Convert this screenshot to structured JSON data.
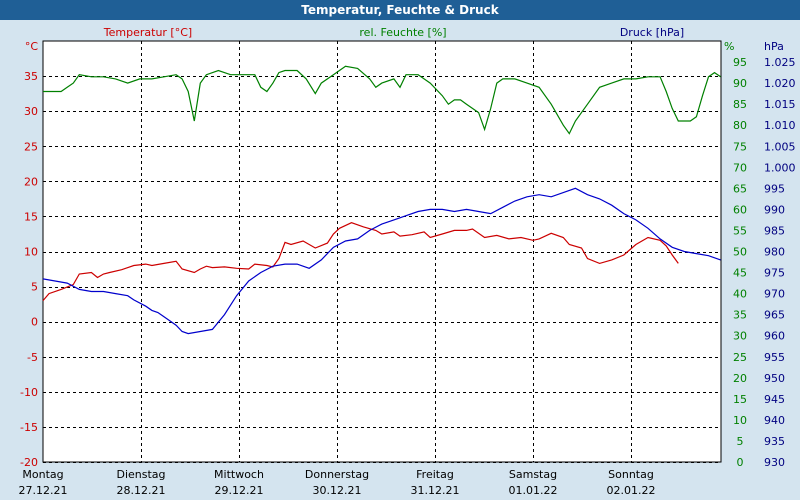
{
  "window": {
    "title": "Temperatur, Feuchte & Druck"
  },
  "colors": {
    "background": "#d4e4ef",
    "titlebar": "#1f5f96",
    "temperature": "#cc0000",
    "humidity": "#008000",
    "pressure": "#0000cc"
  },
  "chart_data": {
    "type": "line",
    "title": "Temperatur, Feuchte & Druck",
    "grid": true,
    "legend_placement": "top",
    "x_ticks": [
      {
        "day": "Montag",
        "date": "27.12.21"
      },
      {
        "day": "Dienstag",
        "date": "28.12.21"
      },
      {
        "day": "Mittwoch",
        "date": "29.12.21"
      },
      {
        "day": "Donnerstag",
        "date": "30.12.21"
      },
      {
        "day": "Freitag",
        "date": "31.12.21"
      },
      {
        "day": "Samstag",
        "date": "01.01.22"
      },
      {
        "day": "Sonntag",
        "date": "02.01.22"
      }
    ],
    "axes": {
      "temperature": {
        "label": "Temperatur [°C]",
        "unit": "°C",
        "range": [
          -20,
          40
        ],
        "ticks": [
          35,
          30,
          25,
          20,
          15,
          10,
          5,
          0,
          -5,
          -10,
          -15,
          -20
        ]
      },
      "humidity": {
        "label": "rel. Feuchte [%]",
        "unit": "%",
        "range": [
          0,
          100
        ],
        "ticks": [
          95,
          90,
          85,
          80,
          75,
          70,
          65,
          60,
          55,
          50,
          45,
          40,
          35,
          30,
          25,
          20,
          15,
          10,
          5,
          0
        ]
      },
      "pressure": {
        "label": "Druck [hPa]",
        "unit": "hPa",
        "range": [
          930,
          1030
        ],
        "ticks": [
          "1.025",
          "1.020",
          "1.015",
          "1.010",
          "1.005",
          "1.000",
          "995",
          "990",
          "985",
          "980",
          "975",
          "970",
          "965",
          "960",
          "955",
          "950",
          "945",
          "940",
          "935",
          "930"
        ]
      }
    },
    "series": [
      {
        "name": "Temperatur [°C]",
        "axis": "temperature",
        "color": "#cc0000",
        "points": [
          [
            0,
            3.0
          ],
          [
            0.1,
            4.0
          ],
          [
            0.3,
            4.6
          ],
          [
            0.5,
            5.3
          ],
          [
            0.6,
            6.8
          ],
          [
            0.8,
            7.0
          ],
          [
            0.9,
            6.3
          ],
          [
            1.0,
            6.8
          ],
          [
            1.1,
            7.0
          ],
          [
            1.3,
            7.4
          ],
          [
            1.5,
            8.0
          ],
          [
            1.7,
            8.2
          ],
          [
            1.8,
            8.0
          ],
          [
            2.0,
            8.3
          ],
          [
            2.2,
            8.6
          ],
          [
            2.3,
            7.5
          ],
          [
            2.5,
            7.0
          ],
          [
            2.6,
            7.5
          ],
          [
            2.7,
            7.9
          ],
          [
            2.8,
            7.7
          ],
          [
            3.0,
            7.8
          ],
          [
            3.2,
            7.6
          ],
          [
            3.4,
            7.5
          ],
          [
            3.5,
            8.2
          ],
          [
            3.7,
            8.0
          ],
          [
            3.8,
            7.8
          ],
          [
            3.9,
            9.0
          ],
          [
            4.0,
            11.3
          ],
          [
            4.1,
            11.0
          ],
          [
            4.3,
            11.5
          ],
          [
            4.5,
            10.5
          ],
          [
            4.7,
            11.2
          ],
          [
            4.8,
            12.5
          ],
          [
            4.9,
            13.3
          ],
          [
            5.1,
            14.1
          ],
          [
            5.3,
            13.5
          ],
          [
            5.5,
            13.0
          ],
          [
            5.6,
            12.5
          ],
          [
            5.8,
            12.8
          ],
          [
            5.9,
            12.2
          ],
          [
            6.1,
            12.4
          ],
          [
            6.3,
            12.8
          ],
          [
            6.4,
            12.0
          ],
          [
            6.6,
            12.5
          ],
          [
            6.8,
            13.0
          ],
          [
            7.0,
            13.0
          ],
          [
            7.1,
            13.2
          ],
          [
            7.3,
            12.0
          ],
          [
            7.5,
            12.3
          ],
          [
            7.7,
            11.8
          ],
          [
            7.9,
            12.0
          ],
          [
            8.1,
            11.6
          ],
          [
            8.2,
            11.8
          ],
          [
            8.4,
            12.6
          ],
          [
            8.6,
            12.0
          ],
          [
            8.7,
            11.0
          ],
          [
            8.9,
            10.5
          ],
          [
            9.0,
            9.0
          ],
          [
            9.2,
            8.3
          ],
          [
            9.4,
            8.8
          ],
          [
            9.6,
            9.5
          ],
          [
            9.8,
            11.0
          ],
          [
            10.0,
            12.0
          ],
          [
            10.2,
            11.6
          ],
          [
            10.3,
            10.8
          ],
          [
            10.4,
            9.5
          ],
          [
            10.5,
            8.3
          ]
        ]
      },
      {
        "name": "rel. Feuchte [%]",
        "axis": "humidity",
        "color": "#008000",
        "points": [
          [
            0,
            88
          ],
          [
            0.3,
            88
          ],
          [
            0.4,
            89
          ],
          [
            0.5,
            90
          ],
          [
            0.6,
            92
          ],
          [
            0.8,
            91.5
          ],
          [
            1.0,
            91.5
          ],
          [
            1.2,
            91
          ],
          [
            1.4,
            90
          ],
          [
            1.6,
            91
          ],
          [
            1.8,
            91
          ],
          [
            2.0,
            91.5
          ],
          [
            2.2,
            92
          ],
          [
            2.3,
            91
          ],
          [
            2.4,
            88
          ],
          [
            2.5,
            81
          ],
          [
            2.6,
            90
          ],
          [
            2.7,
            92
          ],
          [
            2.9,
            93
          ],
          [
            3.1,
            92
          ],
          [
            3.3,
            92
          ],
          [
            3.5,
            92
          ],
          [
            3.6,
            89
          ],
          [
            3.7,
            88
          ],
          [
            3.8,
            90
          ],
          [
            3.9,
            92.5
          ],
          [
            4.0,
            93
          ],
          [
            4.2,
            93
          ],
          [
            4.35,
            91
          ],
          [
            4.5,
            87.5
          ],
          [
            4.6,
            90
          ],
          [
            4.8,
            92
          ],
          [
            5.0,
            94
          ],
          [
            5.2,
            93.5
          ],
          [
            5.4,
            91
          ],
          [
            5.5,
            89
          ],
          [
            5.6,
            90
          ],
          [
            5.8,
            91
          ],
          [
            5.9,
            89
          ],
          [
            6.0,
            92
          ],
          [
            6.2,
            92
          ],
          [
            6.3,
            91
          ],
          [
            6.4,
            90
          ],
          [
            6.6,
            87
          ],
          [
            6.7,
            85
          ],
          [
            6.8,
            86
          ],
          [
            6.9,
            86
          ],
          [
            7.0,
            85
          ],
          [
            7.2,
            83
          ],
          [
            7.3,
            79
          ],
          [
            7.4,
            84
          ],
          [
            7.5,
            90
          ],
          [
            7.6,
            91
          ],
          [
            7.8,
            91
          ],
          [
            8.0,
            90
          ],
          [
            8.2,
            89
          ],
          [
            8.4,
            85
          ],
          [
            8.6,
            80
          ],
          [
            8.7,
            78
          ],
          [
            8.8,
            81
          ],
          [
            9.0,
            85
          ],
          [
            9.2,
            89
          ],
          [
            9.4,
            90
          ],
          [
            9.6,
            91
          ],
          [
            9.8,
            91
          ],
          [
            10.0,
            91.5
          ],
          [
            10.2,
            91.5
          ],
          [
            10.3,
            88
          ],
          [
            10.4,
            84
          ],
          [
            10.5,
            81
          ],
          [
            10.7,
            81
          ],
          [
            10.8,
            82
          ],
          [
            10.9,
            87
          ],
          [
            11.0,
            91.5
          ],
          [
            11.1,
            92.5
          ],
          [
            11.2,
            91.5
          ]
        ]
      },
      {
        "name": "Druck [hPa]",
        "axis": "pressure",
        "color": "#0000cc",
        "points": [
          [
            0,
            973.5
          ],
          [
            0.2,
            973
          ],
          [
            0.4,
            972.5
          ],
          [
            0.6,
            971
          ],
          [
            0.8,
            970.5
          ],
          [
            1.0,
            970.5
          ],
          [
            1.2,
            970
          ],
          [
            1.4,
            969.5
          ],
          [
            1.5,
            968.5
          ],
          [
            1.7,
            967
          ],
          [
            1.8,
            966
          ],
          [
            1.9,
            965.5
          ],
          [
            2.0,
            964.5
          ],
          [
            2.1,
            963.5
          ],
          [
            2.2,
            962.5
          ],
          [
            2.3,
            961
          ],
          [
            2.4,
            960.5
          ],
          [
            2.6,
            961
          ],
          [
            2.8,
            961.5
          ],
          [
            3.0,
            965
          ],
          [
            3.2,
            969.5
          ],
          [
            3.4,
            973
          ],
          [
            3.6,
            975
          ],
          [
            3.8,
            976.5
          ],
          [
            4.0,
            977
          ],
          [
            4.2,
            977
          ],
          [
            4.4,
            976
          ],
          [
            4.6,
            978
          ],
          [
            4.8,
            981
          ],
          [
            5.0,
            982.5
          ],
          [
            5.2,
            983
          ],
          [
            5.4,
            985
          ],
          [
            5.6,
            986.5
          ],
          [
            5.8,
            987.5
          ],
          [
            6.0,
            988.5
          ],
          [
            6.2,
            989.5
          ],
          [
            6.4,
            990
          ],
          [
            6.6,
            990
          ],
          [
            6.8,
            989.5
          ],
          [
            7.0,
            990
          ],
          [
            7.2,
            989.5
          ],
          [
            7.4,
            989
          ],
          [
            7.6,
            990.5
          ],
          [
            7.8,
            992
          ],
          [
            8.0,
            993
          ],
          [
            8.2,
            993.5
          ],
          [
            8.4,
            993
          ],
          [
            8.6,
            994
          ],
          [
            8.8,
            995
          ],
          [
            9.0,
            993.5
          ],
          [
            9.2,
            992.5
          ],
          [
            9.4,
            991
          ],
          [
            9.6,
            989
          ],
          [
            9.8,
            987.5
          ],
          [
            10.0,
            985.5
          ],
          [
            10.2,
            983
          ],
          [
            10.4,
            981
          ],
          [
            10.6,
            980
          ],
          [
            10.8,
            979.5
          ],
          [
            11.0,
            979
          ],
          [
            11.2,
            978
          ]
        ]
      }
    ]
  }
}
